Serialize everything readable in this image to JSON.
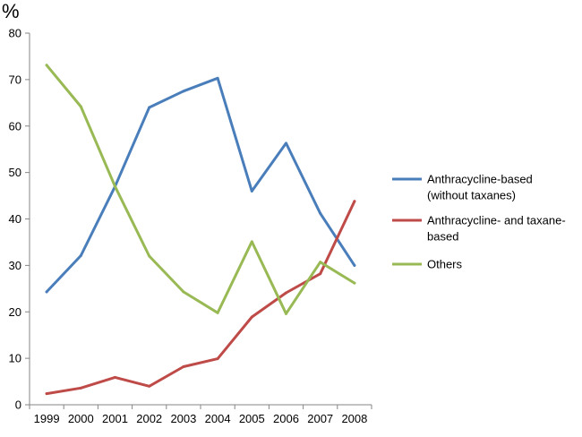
{
  "chart_data": {
    "type": "line",
    "title": "",
    "xlabel": "",
    "ylabel": "%",
    "ylim": [
      0,
      80
    ],
    "yticks": [
      0,
      10,
      20,
      30,
      40,
      50,
      60,
      70,
      80
    ],
    "x": [
      "1999",
      "2000",
      "2001",
      "2002",
      "2003",
      "2004",
      "2005",
      "2006",
      "2007",
      "2008"
    ],
    "grid": false,
    "legend_position": "right",
    "series": [
      {
        "name": "Anthracycline-based (without taxanes)",
        "legend_lines": [
          "Anthracycline-based",
          "(without taxanes)"
        ],
        "color": "#4A7EBB",
        "values": [
          24.3,
          32.1,
          47.0,
          64.0,
          67.5,
          70.3,
          46.0,
          56.3,
          41.2,
          30.0
        ]
      },
      {
        "name": "Anthracycline- and taxane-based",
        "legend_lines": [
          "Anthracycline- and taxane-",
          "based"
        ],
        "color": "#BE4B48",
        "values": [
          2.4,
          3.6,
          5.9,
          4.0,
          8.2,
          9.9,
          18.9,
          24.1,
          28.2,
          43.8
        ]
      },
      {
        "name": "Others",
        "legend_lines": [
          "Others"
        ],
        "color": "#98B954",
        "values": [
          73.1,
          64.2,
          47.0,
          32.0,
          24.3,
          19.8,
          35.1,
          19.6,
          30.7,
          26.2
        ]
      }
    ]
  }
}
